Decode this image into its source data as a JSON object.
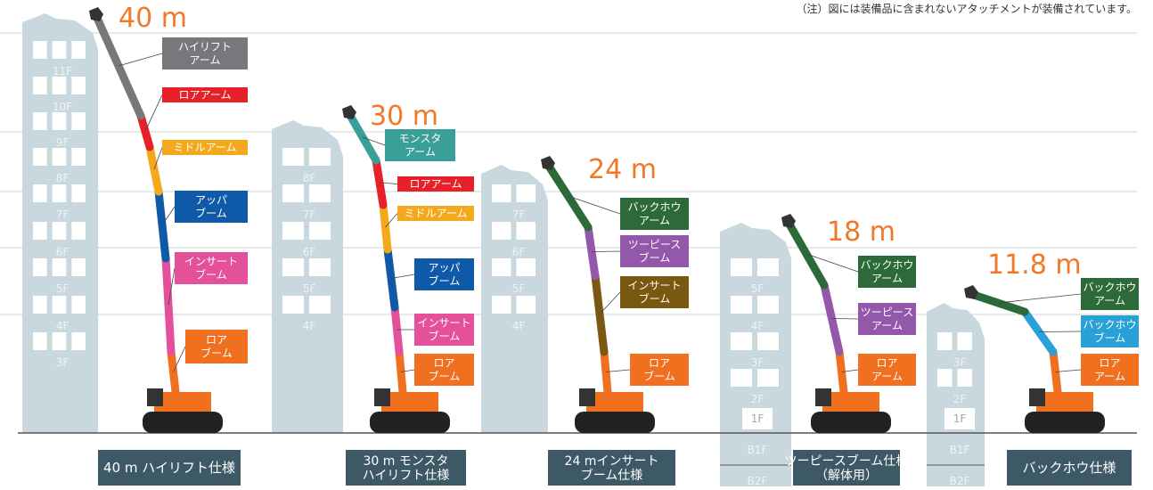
{
  "note": "（注）図には装備品に含まれないアタッチメントが装備されています。",
  "buildings": [
    {
      "floors": [
        "11F",
        "10F",
        "9F",
        "8F",
        "7F",
        "6F",
        "5F",
        "4F",
        "3F"
      ]
    },
    {
      "floors": [
        "8F",
        "7F",
        "6F",
        "5F",
        "4F"
      ]
    },
    {
      "floors": [
        "7F",
        "6F",
        "5F",
        "4F"
      ]
    },
    {
      "floors": [
        "5F",
        "4F",
        "3F",
        "2F",
        "1F",
        "B1F",
        "B2F"
      ]
    },
    {
      "floors": [
        "3F",
        "2F",
        "1F",
        "B1F",
        "B2F"
      ]
    }
  ],
  "machines": [
    {
      "height": "40 m",
      "spec": [
        "40 m ハイリフト仕様"
      ],
      "parts": [
        {
          "lines": [
            "ハイリフト",
            "アーム"
          ],
          "color": "#77787b"
        },
        {
          "lines": [
            "ロアアーム"
          ],
          "color": "#e8202a"
        },
        {
          "lines": [
            "ミドルアーム"
          ],
          "color": "#f4a81c"
        },
        {
          "lines": [
            "アッパ",
            "ブーム"
          ],
          "color": "#0f5aa8"
        },
        {
          "lines": [
            "インサート",
            "ブーム"
          ],
          "color": "#e4509a"
        },
        {
          "lines": [
            "ロア",
            "ブーム"
          ],
          "color": "#f07020"
        }
      ]
    },
    {
      "height": "30 m",
      "spec": [
        "30 m モンスタ",
        "ハイリフト仕様"
      ],
      "parts": [
        {
          "lines": [
            "モンスタ",
            "アーム"
          ],
          "color": "#3a9f98"
        },
        {
          "lines": [
            "ロアアーム"
          ],
          "color": "#e8202a"
        },
        {
          "lines": [
            "ミドルアーム"
          ],
          "color": "#f4a81c"
        },
        {
          "lines": [
            "アッパ",
            "ブーム"
          ],
          "color": "#0f5aa8"
        },
        {
          "lines": [
            "インサート",
            "ブーム"
          ],
          "color": "#e4509a"
        },
        {
          "lines": [
            "ロア",
            "ブーム"
          ],
          "color": "#f07020"
        }
      ]
    },
    {
      "height": "24 m",
      "spec": [
        "24 mインサート",
        "ブーム仕様"
      ],
      "parts": [
        {
          "lines": [
            "バックホウ",
            "アーム"
          ],
          "color": "#2d6a3a"
        },
        {
          "lines": [
            "ツーピース",
            "ブーム"
          ],
          "color": "#9358a9"
        },
        {
          "lines": [
            "インサート",
            "ブーム"
          ],
          "color": "#7a5810"
        },
        {
          "lines": [
            "ロア",
            "ブーム"
          ],
          "color": "#f07020"
        }
      ]
    },
    {
      "height": "18 m",
      "spec": [
        "ツーピースブーム仕様",
        "（解体用）"
      ],
      "parts": [
        {
          "lines": [
            "バックホウ",
            "アーム"
          ],
          "color": "#2d6a3a"
        },
        {
          "lines": [
            "ツーピース",
            "アーム"
          ],
          "color": "#9358a9"
        },
        {
          "lines": [
            "ロア",
            "アーム"
          ],
          "color": "#f07020"
        }
      ]
    },
    {
      "height": "11.8 m",
      "spec": [
        "バックホウ仕様"
      ],
      "parts": [
        {
          "lines": [
            "バックホウ",
            "アーム"
          ],
          "color": "#2d6a3a"
        },
        {
          "lines": [
            "バックホウ",
            "ブーム"
          ],
          "color": "#2aa0d8"
        },
        {
          "lines": [
            "ロア",
            "アーム"
          ],
          "color": "#f07020"
        }
      ]
    }
  ]
}
